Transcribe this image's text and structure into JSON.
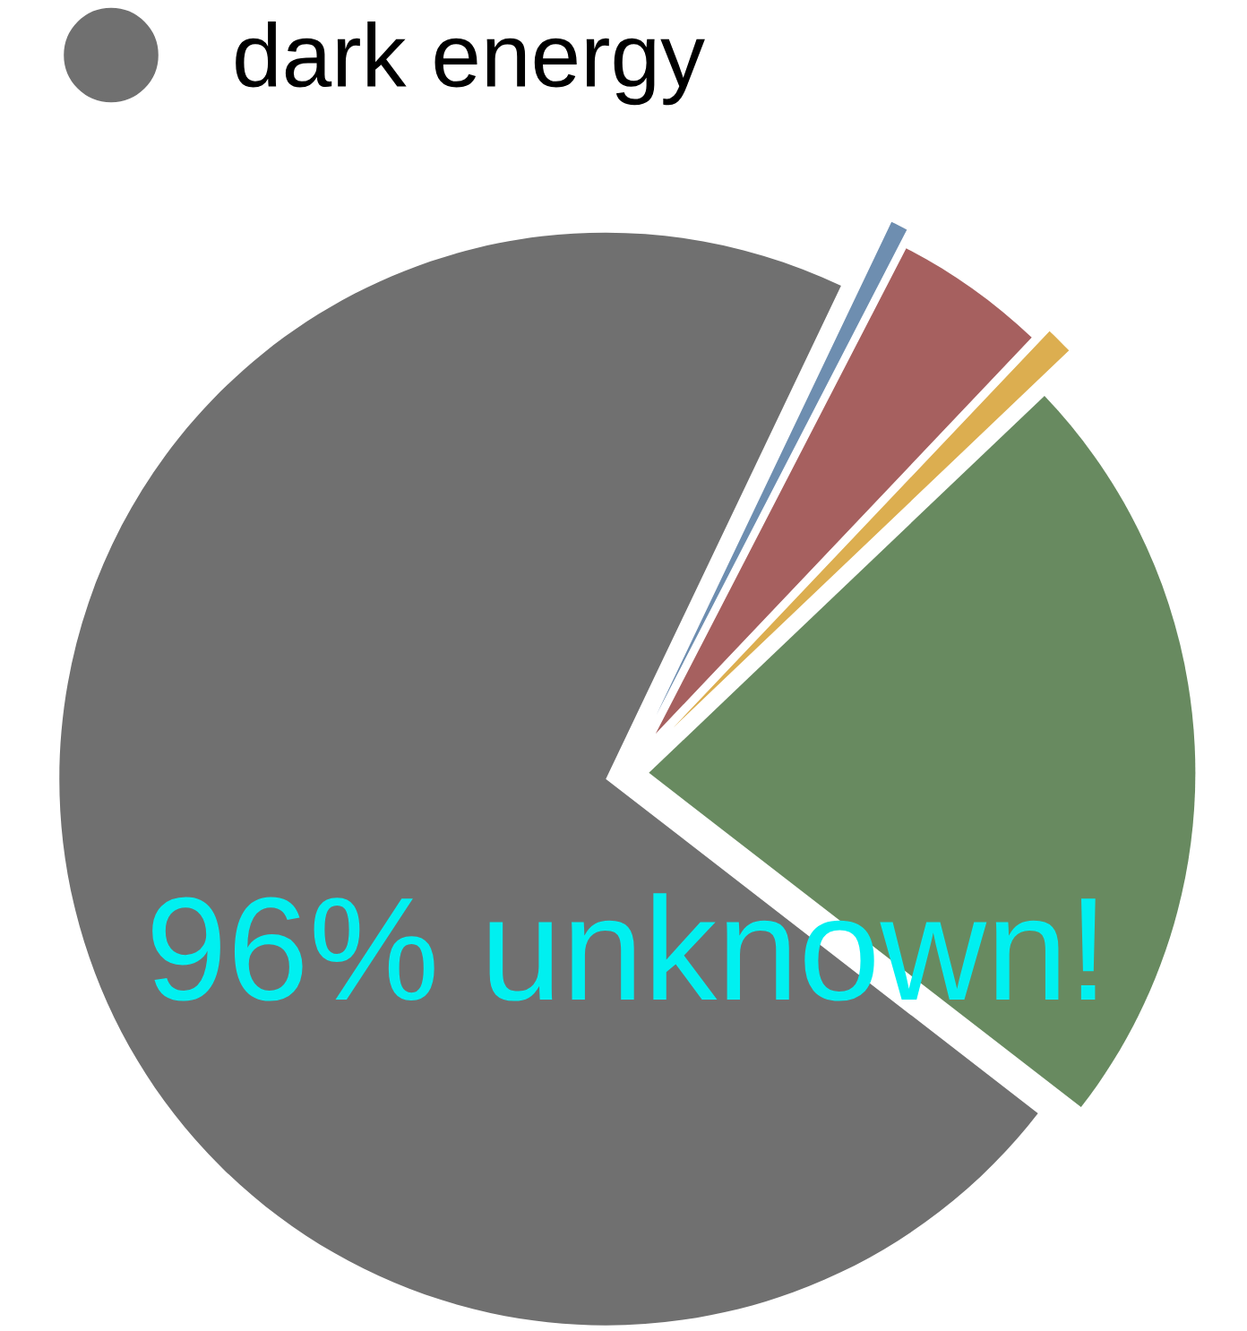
{
  "chart_data": {
    "type": "pie",
    "categories": [
      "dark energy",
      null,
      null,
      null,
      null
    ],
    "values": [
      71.6,
      22.6,
      0.8,
      4.5,
      0.5
    ],
    "colors": [
      "#707070",
      "#688a60",
      "#dcae50",
      "#a6605f",
      "#6e8eb0"
    ],
    "legend": "top left",
    "annotations": [
      "96% unknown!"
    ]
  }
}
